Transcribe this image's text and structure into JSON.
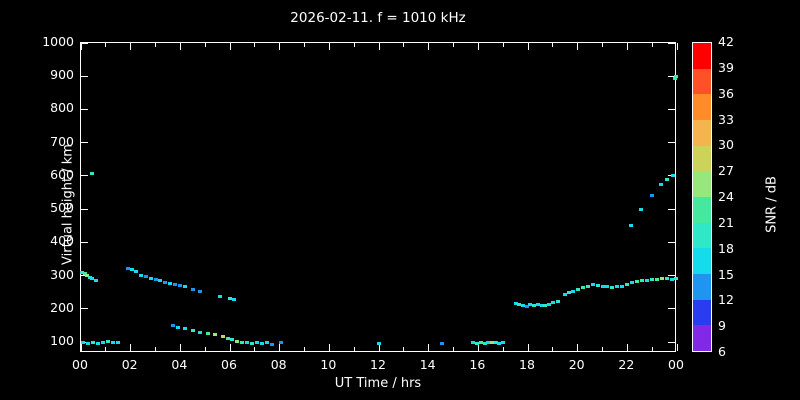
{
  "title": "2026-02-11. f = 1010 kHz",
  "xlabel": "UT Time / hrs",
  "ylabel": "Virtual height / km",
  "colorbar": {
    "label": "SNR / dB",
    "ticks": [
      42,
      39,
      36,
      33,
      30,
      27,
      24,
      21,
      18,
      15,
      12,
      9,
      6
    ],
    "colors_top_down": [
      "#ff0000",
      "#ff5028",
      "#ff8c28",
      "#f5b450",
      "#cdd25a",
      "#96e87d",
      "#46e8a0",
      "#2ee8c8",
      "#14dcec",
      "#1e96f0",
      "#2a3cf0",
      "#8228e6"
    ]
  },
  "axes": {
    "x_tick_labels": [
      "00",
      "02",
      "04",
      "06",
      "08",
      "10",
      "12",
      "14",
      "16",
      "18",
      "20",
      "22",
      "00"
    ],
    "x_tick_hours": [
      0,
      2,
      4,
      6,
      8,
      10,
      12,
      14,
      16,
      18,
      20,
      22,
      24
    ],
    "y_ticks": [
      1000,
      900,
      800,
      700,
      600,
      500,
      400,
      300,
      200,
      100
    ],
    "x_range": [
      0,
      24
    ],
    "y_range": [
      67,
      1000
    ]
  },
  "chart_data": {
    "type": "scatter",
    "x_units": "UT hours",
    "y_units": "km virtual height",
    "c_units": "SNR dB",
    "points": [
      [
        0.1,
        100,
        15
      ],
      [
        0.3,
        97,
        15
      ],
      [
        0.5,
        100,
        18
      ],
      [
        0.7,
        95,
        15
      ],
      [
        0.9,
        100,
        15
      ],
      [
        1.1,
        103,
        18
      ],
      [
        1.3,
        100,
        15
      ],
      [
        1.5,
        98,
        15
      ],
      [
        0.05,
        310,
        18
      ],
      [
        0.15,
        305,
        21
      ],
      [
        0.25,
        300,
        24
      ],
      [
        0.35,
        295,
        18
      ],
      [
        0.45,
        290,
        15
      ],
      [
        0.6,
        285,
        15
      ],
      [
        0.45,
        608,
        18
      ],
      [
        1.9,
        322,
        12
      ],
      [
        2.05,
        318,
        15
      ],
      [
        2.2,
        312,
        15
      ],
      [
        2.4,
        300,
        15
      ],
      [
        2.6,
        296,
        12
      ],
      [
        2.8,
        292,
        15
      ],
      [
        3.0,
        288,
        12
      ],
      [
        3.2,
        284,
        15
      ],
      [
        3.4,
        280,
        12
      ],
      [
        3.6,
        277,
        15
      ],
      [
        3.8,
        274,
        12
      ],
      [
        4.0,
        271,
        12
      ],
      [
        4.2,
        268,
        15
      ],
      [
        4.5,
        258,
        12
      ],
      [
        4.8,
        252,
        12
      ],
      [
        5.6,
        236,
        15
      ],
      [
        3.7,
        150,
        12
      ],
      [
        3.9,
        145,
        15
      ],
      [
        4.2,
        140,
        15
      ],
      [
        4.5,
        135,
        18
      ],
      [
        4.8,
        130,
        15
      ],
      [
        5.1,
        127,
        21
      ],
      [
        5.4,
        122,
        24
      ],
      [
        5.7,
        117,
        27
      ],
      [
        5.9,
        112,
        21
      ],
      [
        6.1,
        107,
        18
      ],
      [
        6.3,
        103,
        24
      ],
      [
        6.5,
        100,
        18
      ],
      [
        6.0,
        232,
        18
      ],
      [
        6.15,
        228,
        15
      ],
      [
        6.7,
        100,
        15
      ],
      [
        6.9,
        97,
        18
      ],
      [
        7.1,
        100,
        15
      ],
      [
        7.3,
        95,
        15
      ],
      [
        7.5,
        98,
        15
      ],
      [
        7.7,
        93,
        12
      ],
      [
        8.05,
        98,
        12
      ],
      [
        12.0,
        95,
        15
      ],
      [
        14.55,
        95,
        12
      ],
      [
        15.8,
        100,
        15
      ],
      [
        15.95,
        97,
        18
      ],
      [
        16.1,
        100,
        21
      ],
      [
        16.25,
        95,
        18
      ],
      [
        16.4,
        100,
        15
      ],
      [
        16.55,
        98,
        24
      ],
      [
        16.7,
        100,
        18
      ],
      [
        16.85,
        97,
        15
      ],
      [
        17.0,
        100,
        15
      ],
      [
        17.5,
        216,
        15
      ],
      [
        17.65,
        212,
        18
      ],
      [
        17.8,
        210,
        15
      ],
      [
        17.95,
        208,
        12
      ],
      [
        18.1,
        212,
        15
      ],
      [
        18.25,
        210,
        18
      ],
      [
        18.4,
        214,
        15
      ],
      [
        18.55,
        211,
        15
      ],
      [
        18.7,
        209,
        18
      ],
      [
        18.85,
        213,
        15
      ],
      [
        19.0,
        218,
        15
      ],
      [
        19.2,
        222,
        18
      ],
      [
        19.5,
        242,
        15
      ],
      [
        19.65,
        248,
        18
      ],
      [
        19.8,
        253,
        15
      ],
      [
        20.0,
        258,
        18
      ],
      [
        20.2,
        263,
        21
      ],
      [
        20.4,
        268,
        18
      ],
      [
        20.6,
        272,
        15
      ],
      [
        20.8,
        270,
        18
      ],
      [
        21.0,
        268,
        15
      ],
      [
        21.2,
        266,
        15
      ],
      [
        21.4,
        264,
        18
      ],
      [
        21.6,
        268,
        15
      ],
      [
        21.8,
        266,
        15
      ],
      [
        22.0,
        272,
        18
      ],
      [
        22.2,
        278,
        15
      ],
      [
        22.4,
        283,
        21
      ],
      [
        22.6,
        286,
        18
      ],
      [
        22.8,
        284,
        15
      ],
      [
        23.0,
        288,
        18
      ],
      [
        23.2,
        287,
        21
      ],
      [
        23.4,
        290,
        24
      ],
      [
        23.6,
        291,
        18
      ],
      [
        23.8,
        289,
        15
      ],
      [
        23.95,
        290,
        18
      ],
      [
        22.15,
        452,
        15
      ],
      [
        22.55,
        500,
        15
      ],
      [
        23.0,
        540,
        12
      ],
      [
        23.35,
        575,
        15
      ],
      [
        23.6,
        590,
        18
      ],
      [
        23.85,
        600,
        15
      ],
      [
        23.9,
        893,
        18
      ],
      [
        23.97,
        900,
        21
      ]
    ]
  }
}
